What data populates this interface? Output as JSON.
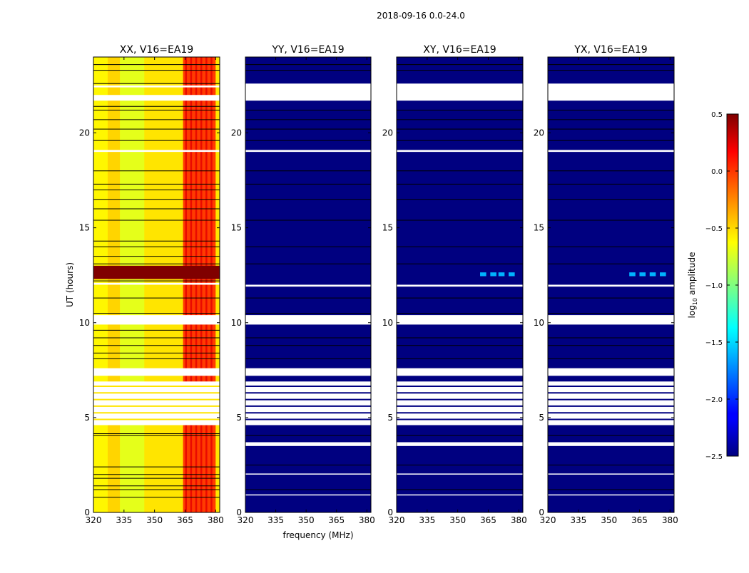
{
  "figure": {
    "suptitle": "2018-09-16 0.0-24.0",
    "colors": {
      "background": "#ffffff",
      "axis": "#000000",
      "gap": "#ffffff",
      "flag_line": "#000000"
    }
  },
  "chart_data": [
    {
      "type": "heatmap",
      "title": "XX, V16=EA19",
      "xlabel": "",
      "ylabel": "UT (hours)",
      "xlim": [
        320,
        382
      ],
      "ylim": [
        0,
        24
      ],
      "xticks": [
        320,
        335,
        350,
        365,
        380
      ],
      "yticks": [
        0,
        5,
        10,
        15,
        20
      ],
      "base_level": -0.55,
      "band_level": -0.05,
      "band_range_mhz": [
        364,
        380
      ],
      "rfi_hours": [
        12.3,
        13.0
      ],
      "rfi_level": 0.5,
      "missing_hours": [
        [
          4.6,
          6.9
        ],
        [
          7.2,
          7.6
        ],
        [
          9.9,
          10.4
        ],
        [
          12.0,
          12.1
        ],
        [
          19.0,
          19.1
        ],
        [
          21.7,
          22.0
        ],
        [
          22.4,
          22.5
        ]
      ],
      "flag_hours": [
        0.8,
        1.2,
        1.4,
        1.8,
        2.0,
        2.4,
        4.05,
        4.15,
        8.1,
        8.4,
        8.8,
        9.2,
        9.6,
        10.5,
        11.3,
        12.2,
        13.1,
        13.5,
        14.0,
        14.3,
        15.4,
        16.0,
        16.5,
        17.0,
        17.3,
        18.0,
        19.6,
        20.2,
        20.7,
        21.2,
        21.4,
        22.6,
        23.3,
        23.6
      ]
    },
    {
      "type": "heatmap",
      "title": "YY, V16=EA19",
      "xlabel": "frequency (MHz)",
      "ylabel": "",
      "xlim": [
        320,
        382
      ],
      "ylim": [
        0,
        24
      ],
      "xticks": [
        320,
        335,
        350,
        365,
        380
      ],
      "yticks": [
        0,
        5,
        10,
        15,
        20
      ],
      "base_level": -2.5,
      "missing_hours": [
        [
          0.9,
          0.95
        ],
        [
          2.0,
          2.05
        ],
        [
          3.5,
          3.7
        ],
        [
          4.6,
          6.9
        ],
        [
          7.2,
          7.6
        ],
        [
          9.9,
          10.4
        ],
        [
          11.9,
          12.0
        ],
        [
          19.0,
          19.1
        ],
        [
          21.7,
          22.6
        ]
      ],
      "flag_hours": [
        1.2,
        2.5,
        4.05,
        8.1,
        8.8,
        9.2,
        10.5,
        11.3,
        13.1,
        14.0,
        15.4,
        16.5,
        17.3,
        18.0,
        19.6,
        20.2,
        20.7,
        21.2,
        23.3,
        23.6
      ]
    },
    {
      "type": "heatmap",
      "title": "XY, V16=EA19",
      "xlabel": "",
      "ylabel": "",
      "xlim": [
        320,
        382
      ],
      "ylim": [
        0,
        24
      ],
      "xticks": [
        320,
        335,
        350,
        365,
        380
      ],
      "yticks": [
        0,
        5,
        10,
        15,
        20
      ],
      "base_level": -2.5,
      "blips": {
        "hours": [
          12.45,
          12.65
        ],
        "level": -1.6,
        "freqs": [
          [
            361,
            364
          ],
          [
            366,
            369
          ],
          [
            370,
            373
          ],
          [
            375,
            378
          ]
        ]
      },
      "missing_hours": [
        [
          0.9,
          0.95
        ],
        [
          2.0,
          2.05
        ],
        [
          3.5,
          3.7
        ],
        [
          4.6,
          6.9
        ],
        [
          7.2,
          7.6
        ],
        [
          9.9,
          10.4
        ],
        [
          11.9,
          12.0
        ],
        [
          19.0,
          19.1
        ],
        [
          21.7,
          22.6
        ]
      ],
      "flag_hours": [
        1.2,
        2.5,
        4.05,
        8.1,
        8.8,
        9.2,
        10.5,
        11.3,
        13.1,
        14.0,
        15.4,
        16.5,
        17.3,
        18.0,
        19.6,
        20.2,
        20.7,
        21.2,
        23.3,
        23.6
      ]
    },
    {
      "type": "heatmap",
      "title": "YX, V16=EA19",
      "xlabel": "",
      "ylabel": "",
      "xlim": [
        320,
        382
      ],
      "ylim": [
        0,
        24
      ],
      "xticks": [
        320,
        335,
        350,
        365,
        380
      ],
      "yticks": [
        0,
        5,
        10,
        15,
        20
      ],
      "base_level": -2.5,
      "blips": {
        "hours": [
          12.45,
          12.65
        ],
        "level": -1.6,
        "freqs": [
          [
            360,
            363
          ],
          [
            365,
            368
          ],
          [
            370,
            373
          ],
          [
            375,
            378
          ]
        ]
      },
      "missing_hours": [
        [
          0.9,
          0.95
        ],
        [
          2.0,
          2.05
        ],
        [
          3.5,
          3.7
        ],
        [
          4.6,
          6.9
        ],
        [
          7.2,
          7.6
        ],
        [
          9.9,
          10.4
        ],
        [
          11.9,
          12.0
        ],
        [
          19.0,
          19.1
        ],
        [
          21.7,
          22.6
        ]
      ],
      "flag_hours": [
        1.2,
        2.5,
        4.05,
        8.1,
        8.8,
        9.2,
        10.5,
        11.3,
        13.1,
        14.0,
        15.4,
        16.5,
        17.3,
        18.0,
        19.6,
        20.2,
        20.7,
        21.2,
        23.3,
        23.6
      ]
    }
  ],
  "colorbar": {
    "label_prefix": "log",
    "label_subscript": "10",
    "label_suffix": " amplitude",
    "range": [
      -2.5,
      0.5
    ],
    "ticks": [
      0.5,
      0.0,
      -0.5,
      -1.0,
      -1.5,
      -2.0,
      -2.5
    ],
    "tick_labels": [
      "0.5",
      "0.0",
      "−0.5",
      "−1.0",
      "−1.5",
      "−2.0",
      "−2.5"
    ],
    "colormap": "jet"
  }
}
